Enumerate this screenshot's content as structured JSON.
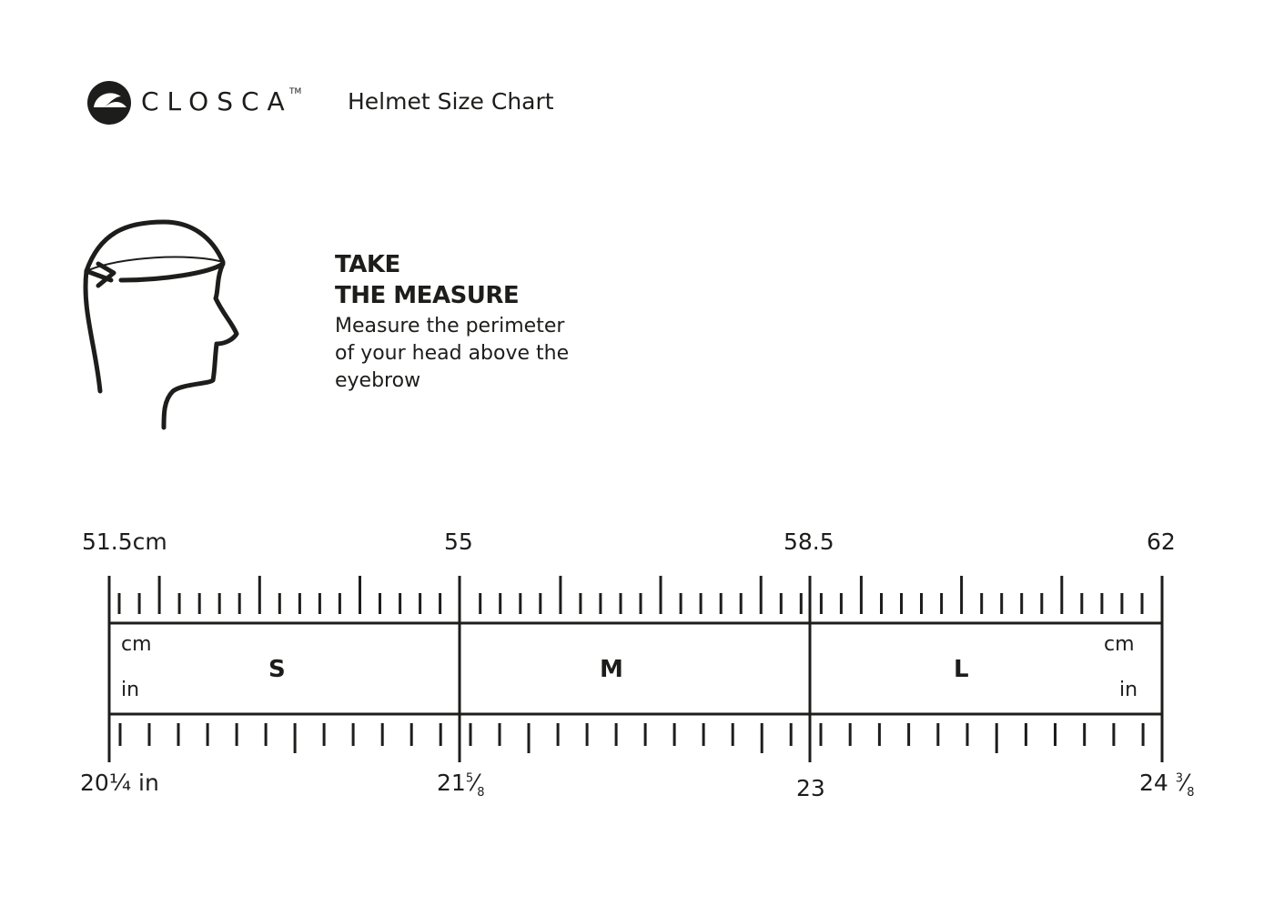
{
  "header": {
    "brand": "CLOSCA",
    "trademark": "TM",
    "title": "Helmet Size Chart"
  },
  "instructions": {
    "heading_line1": "TAKE",
    "heading_line2": "THE MEASURE",
    "body_lines": [
      "Measure the perimeter",
      "of your head above the",
      "eyebrow"
    ]
  },
  "ruler": {
    "cm_labels": [
      "51.5cm",
      "55",
      "58.5",
      "62"
    ],
    "in_labels": {
      "start_whole": "20",
      "start_frac": "¼",
      "start_unit": " in",
      "second_whole": "21",
      "second_num": "5",
      "second_den": "8",
      "third": "23",
      "end_whole": "24",
      "end_num": "3",
      "end_den": "8"
    },
    "unit_cm": "cm",
    "unit_in": "in",
    "sizes": [
      {
        "label": "S",
        "cm_range": [
          51.5,
          55
        ],
        "in_range": [
          "20 1/4",
          "21 5/8"
        ]
      },
      {
        "label": "M",
        "cm_range": [
          55,
          58.5
        ],
        "in_range": [
          "21 5/8",
          "23"
        ]
      },
      {
        "label": "L",
        "cm_range": [
          58.5,
          62
        ],
        "in_range": [
          "23",
          "24 3/8"
        ]
      }
    ],
    "color": "#1d1d1b"
  }
}
